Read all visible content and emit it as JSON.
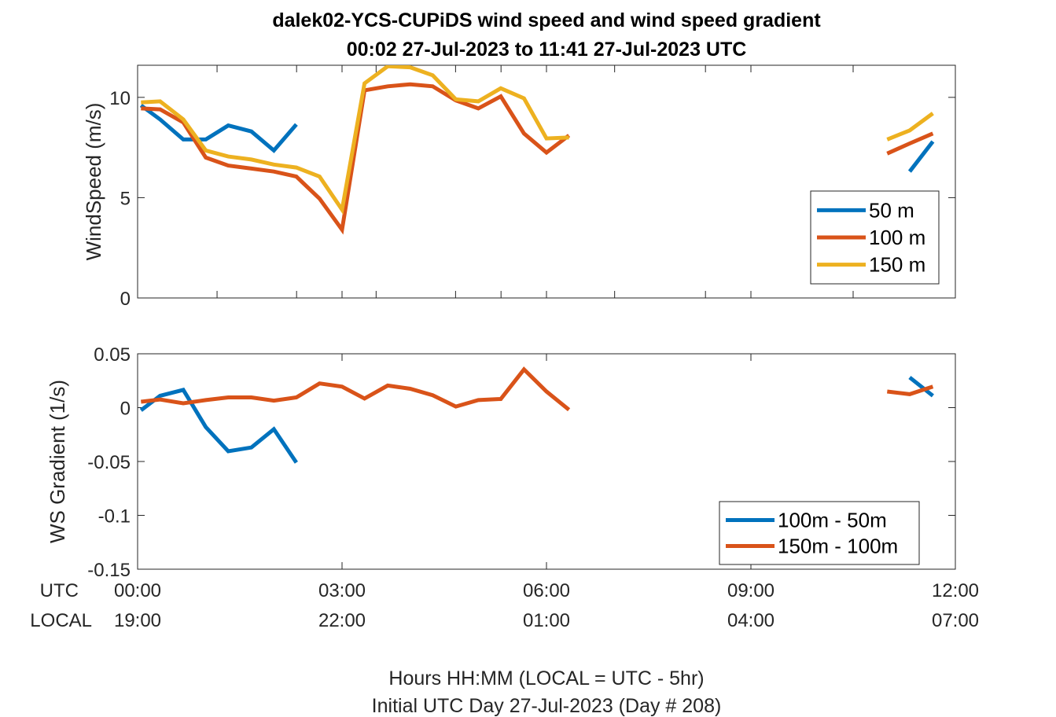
{
  "figure": {
    "title_line1": "dalek02-YCS-CUPiDS  wind speed and wind speed gradient",
    "title_line2": "00:02 27-Jul-2023 to 11:41 27-Jul-2023  UTC",
    "footer_line1": "Hours HH:MM  (LOCAL = UTC - 5hr)",
    "footer_line2": "Initial UTC Day 27-Jul-2023 (Day # 208)",
    "row_label_utc": "UTC",
    "row_label_local": "LOCAL"
  },
  "chart_data": [
    {
      "type": "line",
      "ylabel": "WindSpeed (m/s)",
      "xlim": [
        0,
        12
      ],
      "ylim": [
        0,
        11.6
      ],
      "yticks": [
        0,
        5,
        10
      ],
      "ytick_labels": [
        "0",
        "5",
        "10"
      ],
      "xticks": [
        0,
        1.166,
        2.333,
        3,
        3.5,
        4.666,
        5.333,
        6,
        7,
        8.333,
        9,
        10.5,
        12
      ],
      "grid": false,
      "legend_position": "right",
      "colors": [
        "#0072BD",
        "#D95319",
        "#EDB120"
      ],
      "series": [
        {
          "name": "50 m",
          "segments": [
            [
              [
                0.05,
                9.6
              ],
              [
                0.33,
                8.9
              ],
              [
                0.67,
                7.9
              ],
              [
                1.0,
                7.9
              ],
              [
                1.33,
                8.6
              ],
              [
                1.67,
                8.3
              ],
              [
                2.0,
                7.35
              ],
              [
                2.33,
                8.65
              ]
            ],
            [
              [
                11.33,
                6.3
              ],
              [
                11.67,
                7.8
              ]
            ]
          ]
        },
        {
          "name": "100 m",
          "segments": [
            [
              [
                0.05,
                9.45
              ],
              [
                0.33,
                9.4
              ],
              [
                0.67,
                8.75
              ],
              [
                1.0,
                7.0
              ],
              [
                1.33,
                6.6
              ],
              [
                1.67,
                6.45
              ],
              [
                2.0,
                6.3
              ],
              [
                2.33,
                6.05
              ],
              [
                2.67,
                4.95
              ],
              [
                3.0,
                3.4
              ],
              [
                3.33,
                10.35
              ],
              [
                3.67,
                10.55
              ],
              [
                4.0,
                10.65
              ],
              [
                4.33,
                10.55
              ],
              [
                4.67,
                9.85
              ],
              [
                5.0,
                9.45
              ],
              [
                5.33,
                10.05
              ],
              [
                5.67,
                8.2
              ],
              [
                6.0,
                7.25
              ],
              [
                6.33,
                8.1
              ]
            ],
            [
              [
                11.0,
                7.2
              ],
              [
                11.33,
                7.7
              ],
              [
                11.67,
                8.2
              ]
            ]
          ]
        },
        {
          "name": "150 m",
          "segments": [
            [
              [
                0.05,
                9.75
              ],
              [
                0.33,
                9.8
              ],
              [
                0.67,
                8.9
              ],
              [
                1.0,
                7.35
              ],
              [
                1.33,
                7.05
              ],
              [
                1.67,
                6.9
              ],
              [
                2.0,
                6.65
              ],
              [
                2.33,
                6.5
              ],
              [
                2.67,
                6.05
              ],
              [
                3.0,
                4.4
              ],
              [
                3.33,
                10.7
              ],
              [
                3.67,
                11.55
              ],
              [
                4.0,
                11.5
              ],
              [
                4.33,
                11.1
              ],
              [
                4.67,
                9.9
              ],
              [
                5.0,
                9.8
              ],
              [
                5.33,
                10.45
              ],
              [
                5.67,
                9.95
              ],
              [
                6.0,
                7.95
              ],
              [
                6.33,
                8.0
              ]
            ],
            [
              [
                11.0,
                7.9
              ],
              [
                11.33,
                8.35
              ],
              [
                11.67,
                9.2
              ]
            ]
          ]
        }
      ]
    },
    {
      "type": "line",
      "ylabel": "WS Gradient (1/s)",
      "xlim": [
        0,
        12
      ],
      "ylim": [
        -0.15,
        0.05
      ],
      "yticks": [
        -0.15,
        -0.1,
        -0.05,
        0,
        0.05
      ],
      "ytick_labels": [
        "-0.15",
        "-0.1",
        "-0.05",
        "0",
        "0.05"
      ],
      "xticks": [
        0,
        3,
        6,
        9,
        12
      ],
      "xtick_labels_utc": [
        "00:00",
        "03:00",
        "06:00",
        "09:00",
        "12:00"
      ],
      "xtick_labels_local": [
        "19:00",
        "22:00",
        "01:00",
        "04:00",
        "07:00"
      ],
      "grid": false,
      "legend_position": "bottom-right",
      "colors": [
        "#0072BD",
        "#D95319"
      ],
      "series": [
        {
          "name": "100m - 50m",
          "segments": [
            [
              [
                0.05,
                -0.0025
              ],
              [
                0.33,
                0.011
              ],
              [
                0.67,
                0.0165
              ],
              [
                1.0,
                -0.018
              ],
              [
                1.33,
                -0.0405
              ],
              [
                1.67,
                -0.037
              ],
              [
                2.0,
                -0.02
              ],
              [
                2.33,
                -0.051
              ]
            ],
            [
              [
                11.33,
                0.028
              ],
              [
                11.67,
                0.011
              ]
            ]
          ]
        },
        {
          "name": "150m - 100m",
          "segments": [
            [
              [
                0.05,
                0.0055
              ],
              [
                0.33,
                0.0075
              ],
              [
                0.67,
                0.004
              ],
              [
                1.0,
                0.007
              ],
              [
                1.33,
                0.0095
              ],
              [
                1.67,
                0.0095
              ],
              [
                2.0,
                0.0065
              ],
              [
                2.33,
                0.0095
              ],
              [
                2.67,
                0.0225
              ],
              [
                3.0,
                0.0195
              ],
              [
                3.33,
                0.0085
              ],
              [
                3.67,
                0.0205
              ],
              [
                4.0,
                0.0175
              ],
              [
                4.33,
                0.0115
              ],
              [
                4.67,
                0.001
              ],
              [
                5.0,
                0.007
              ],
              [
                5.33,
                0.008
              ],
              [
                5.67,
                0.0355
              ],
              [
                6.0,
                0.015
              ],
              [
                6.33,
                -0.002
              ]
            ],
            [
              [
                11.0,
                0.015
              ],
              [
                11.33,
                0.0125
              ],
              [
                11.67,
                0.0195
              ]
            ]
          ]
        }
      ]
    }
  ]
}
